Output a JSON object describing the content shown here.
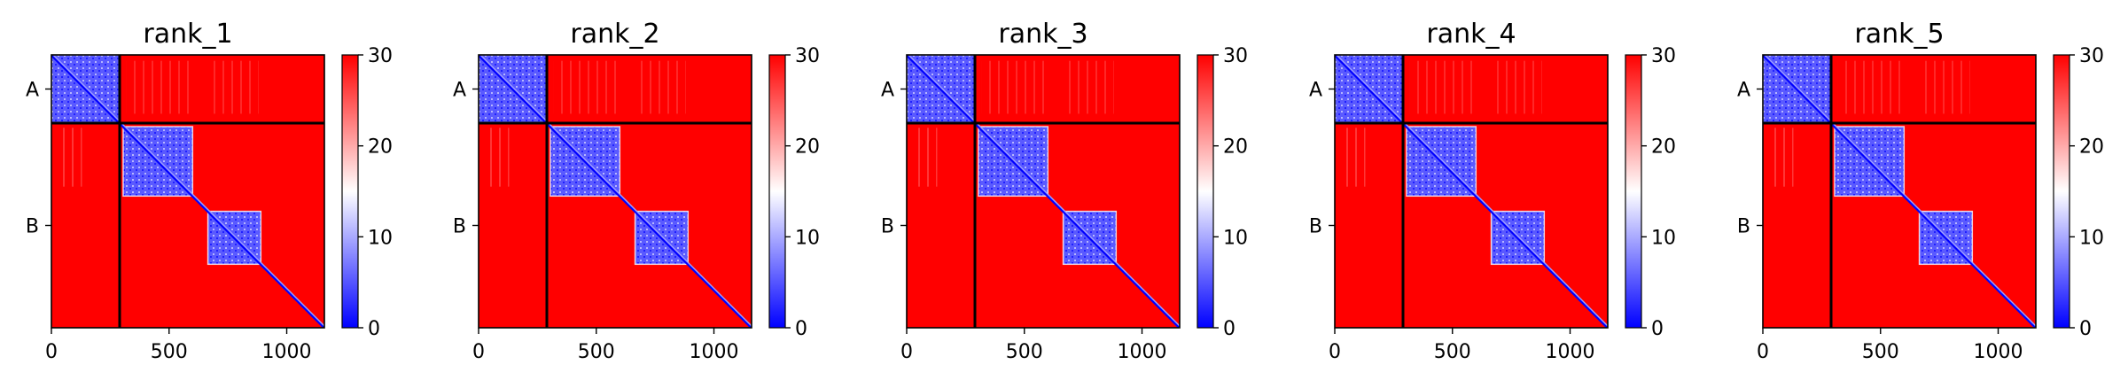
{
  "chart_data": {
    "type": "heatmap",
    "description_free": true,
    "colormap": {
      "name": "bwr",
      "stops": [
        "#0000ff",
        "#ffffff",
        "#ff0000"
      ],
      "range": [
        0,
        30
      ],
      "ticks": [
        "0",
        "10",
        "20",
        "30"
      ]
    },
    "xlim": [
      0,
      1160
    ],
    "ylim": [
      1160,
      0
    ],
    "x_ticks": [
      {
        "value": 0,
        "label": "0"
      },
      {
        "value": 500,
        "label": "500"
      },
      {
        "value": 1000,
        "label": "1000"
      }
    ],
    "chain_boundaries": [
      290
    ],
    "chains": [
      {
        "label": "A",
        "start": 0,
        "end": 290
      },
      {
        "label": "B",
        "start": 290,
        "end": 1160
      }
    ],
    "low_error_blocks": [
      {
        "start": 0,
        "end": 290
      },
      {
        "start": 305,
        "end": 600
      },
      {
        "start": 665,
        "end": 890
      }
    ],
    "panels": [
      {
        "title": "rank_1"
      },
      {
        "title": "rank_2"
      },
      {
        "title": "rank_3"
      },
      {
        "title": "rank_4"
      },
      {
        "title": "rank_5"
      }
    ]
  }
}
